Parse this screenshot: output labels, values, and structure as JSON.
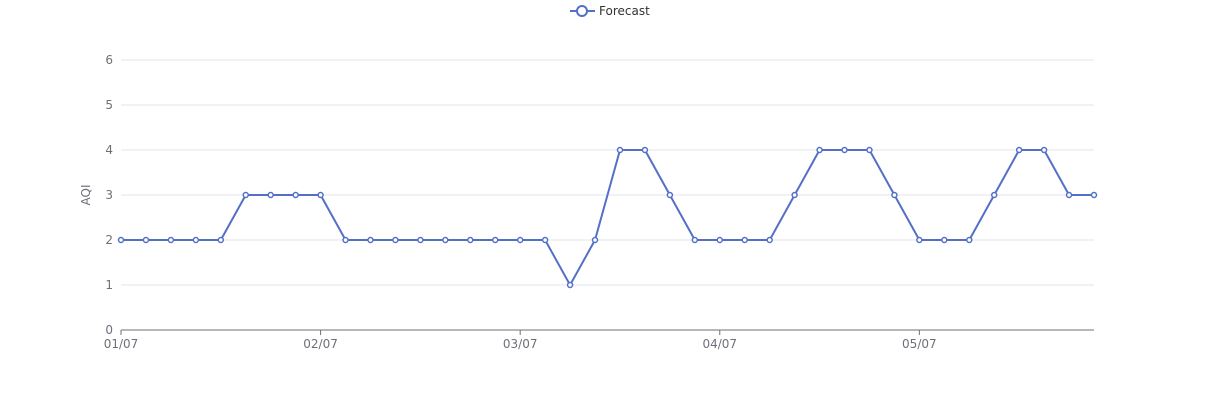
{
  "chart_data": {
    "type": "line",
    "legend": {
      "position": "top-center",
      "entries": [
        "Forecast"
      ]
    },
    "ylabel": "AQI",
    "xlabel": "",
    "ylim": [
      0,
      6
    ],
    "y_ticks": [
      0,
      1,
      2,
      3,
      4,
      5,
      6
    ],
    "x_tick_labels": [
      "01/07",
      "02/07",
      "03/07",
      "04/07",
      "05/07"
    ],
    "points_per_day": 8,
    "grid": true,
    "colors": {
      "series": "#5470c6",
      "grid": "#e0e6f1",
      "axis": "#6e7079"
    },
    "series": [
      {
        "name": "Forecast",
        "values": [
          2,
          2,
          2,
          2,
          2,
          3,
          3,
          3,
          3,
          2,
          2,
          2,
          2,
          2,
          2,
          2,
          2,
          2,
          1,
          2,
          4,
          4,
          3,
          2,
          2,
          2,
          2,
          3,
          4,
          4,
          4,
          3,
          2,
          2,
          2,
          3,
          4,
          4,
          3,
          3
        ]
      }
    ]
  }
}
